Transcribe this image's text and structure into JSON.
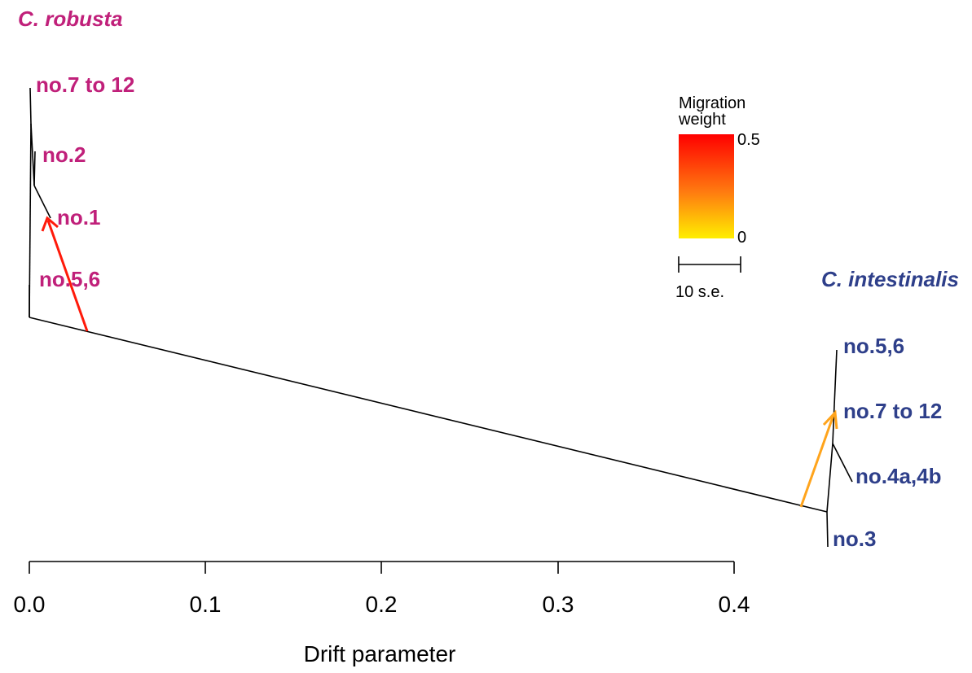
{
  "colors": {
    "robusta": "#c0207a",
    "intestinalis": "#2e3f8a",
    "tree": "#000000",
    "migration_high": "#ff1a0a",
    "migration_low": "#ffa41c",
    "legend_top": "#ff0000",
    "legend_bottom": "#ffee00"
  },
  "species": {
    "robusta": "C. robusta",
    "intestinalis": "C. intestinalis"
  },
  "robusta_tips": [
    {
      "id": "r-7to12",
      "label": "no.7 to 12"
    },
    {
      "id": "r-2",
      "label": "no.2"
    },
    {
      "id": "r-1",
      "label": "no.1"
    },
    {
      "id": "r-56",
      "label": "no.5,6"
    }
  ],
  "intestinalis_tips": [
    {
      "id": "i-56",
      "label": "no.5,6"
    },
    {
      "id": "i-7to12",
      "label": "no.7 to 12"
    },
    {
      "id": "i-4a4b",
      "label": "no.4a,4b"
    },
    {
      "id": "i-3",
      "label": "no.3"
    }
  ],
  "legend": {
    "title_line1": "Migration",
    "title_line2": "weight",
    "max_label": "0.5",
    "min_label": "0",
    "scale_label": "10 s.e."
  },
  "migration_edges": [
    {
      "name": "migration-arrow-robusta",
      "weight": 0.48
    },
    {
      "name": "migration-arrow-intestinalis",
      "weight": 0.12
    }
  ],
  "axis": {
    "title": "Drift parameter",
    "ticks": [
      "0.0",
      "0.1",
      "0.2",
      "0.3",
      "0.4"
    ]
  }
}
